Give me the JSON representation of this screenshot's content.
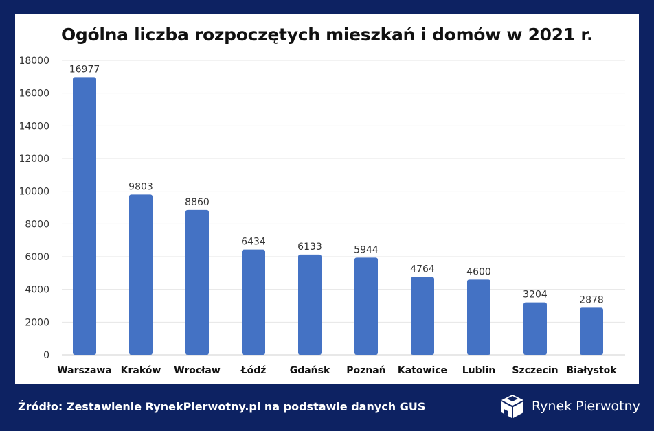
{
  "chart_data": {
    "type": "bar",
    "title": "Ogólna liczba rozpoczętych mieszkań i domów w 2021 r.",
    "categories": [
      "Warszawa",
      "Kraków",
      "Wrocław",
      "Łódź",
      "Gdańsk",
      "Poznań",
      "Katowice",
      "Lublin",
      "Szczecin",
      "Białystok"
    ],
    "values": [
      16977,
      9803,
      8860,
      6434,
      6133,
      5944,
      4764,
      4600,
      3204,
      2878
    ],
    "ylim": [
      0,
      18000
    ],
    "yticks": [
      0,
      2000,
      4000,
      6000,
      8000,
      10000,
      12000,
      14000,
      16000,
      18000
    ],
    "grid": true,
    "bar_color": "#4472c4",
    "xlabel": "",
    "ylabel": ""
  },
  "footer": {
    "source": "Źródło: Zestawienie RynekPierwotny.pl na podstawie danych GUS",
    "brand": "Rynek Pierwotny"
  }
}
